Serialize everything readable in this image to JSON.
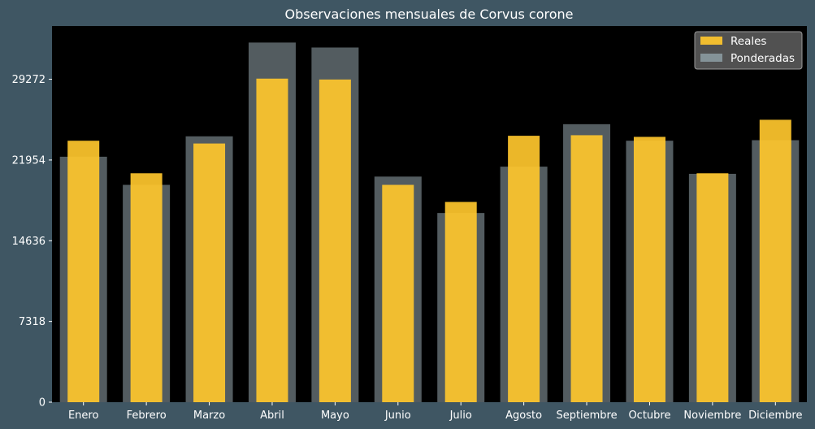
{
  "chart_data": {
    "type": "bar",
    "title": "Observaciones mensuales de Corvus corone",
    "xlabel": "",
    "ylabel": "",
    "categories": [
      "Enero",
      "Febrero",
      "Marzo",
      "Abril",
      "Mayo",
      "Junio",
      "Julio",
      "Agosto",
      "Septiembre",
      "Octubre",
      "Noviembre",
      "Diciembre"
    ],
    "series": [
      {
        "name": "Reales",
        "color": "#ffc72c",
        "values": [
          23700,
          20750,
          23450,
          29330,
          29250,
          19700,
          18150,
          24150,
          24200,
          24050,
          20750,
          25600
        ]
      },
      {
        "name": "Ponderadas",
        "color": "#8a9aa0",
        "values": [
          22250,
          19700,
          24100,
          32600,
          32150,
          20450,
          17150,
          21350,
          25200,
          23700,
          20700,
          23750
        ]
      }
    ],
    "yticks": [
      0,
      7318,
      14636,
      21954,
      29272
    ],
    "ylim": [
      0,
      34100
    ],
    "grid": false,
    "legend": "top-right"
  },
  "colors": {
    "background": "#3f5663",
    "plot_area": "#000000"
  }
}
